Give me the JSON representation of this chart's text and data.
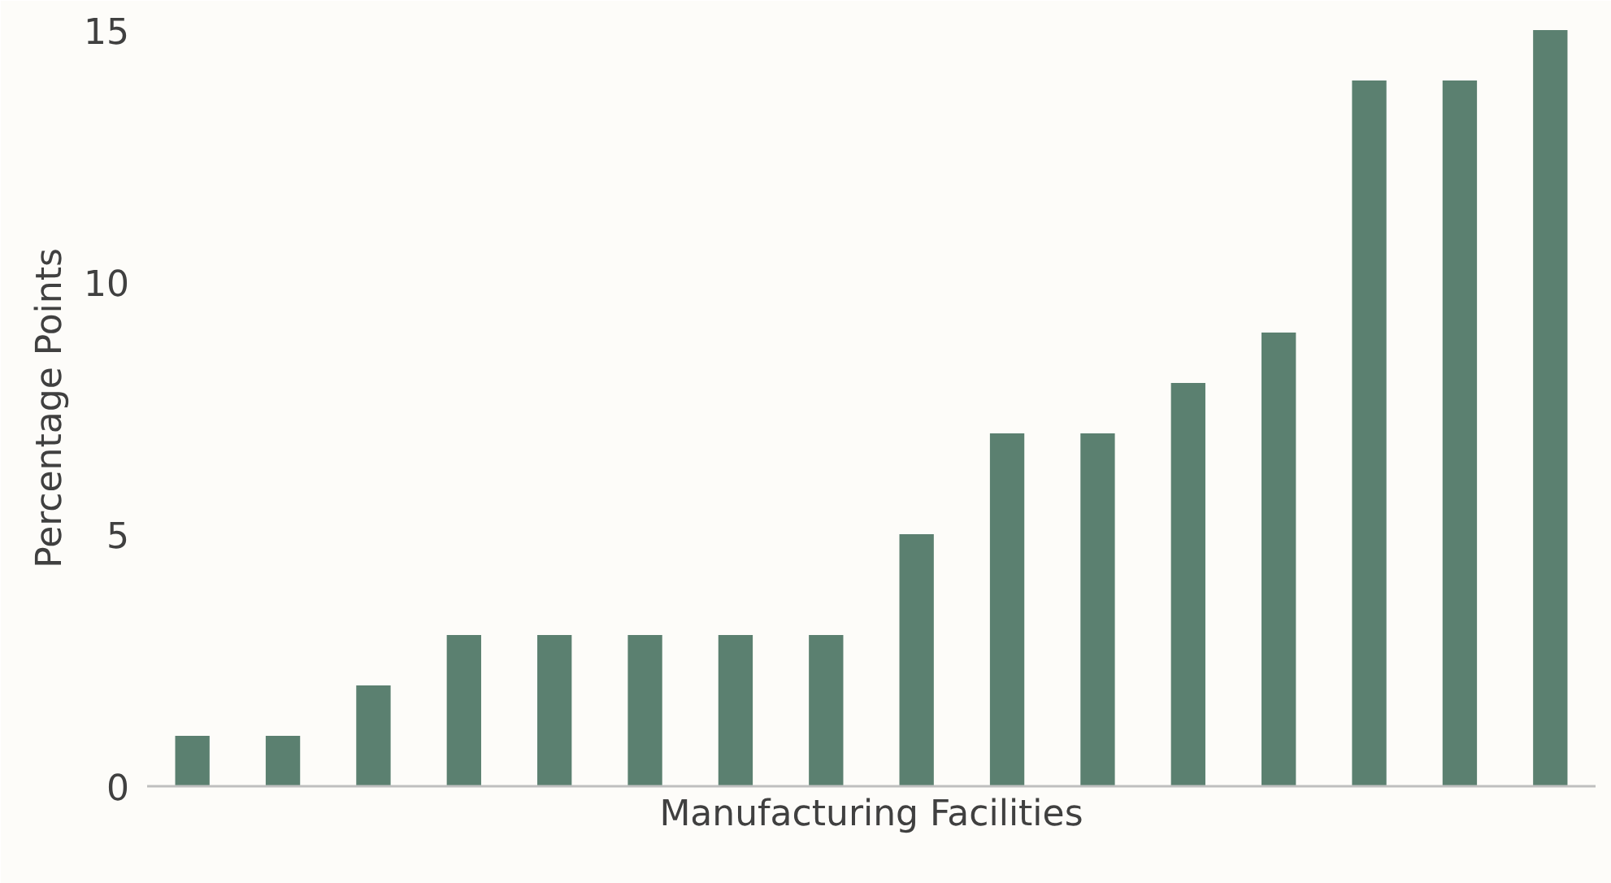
{
  "chart_data": {
    "type": "bar",
    "xlabel": "Manufacturing Facilities",
    "ylabel": "Percentage Points",
    "categories": [
      null,
      null,
      null,
      null,
      null,
      null,
      null,
      null,
      null,
      null,
      null,
      null,
      null,
      null,
      null,
      null
    ],
    "values": [
      1,
      1,
      2,
      3,
      3,
      3,
      3,
      3,
      5,
      7,
      7,
      8,
      9,
      14,
      14,
      15
    ],
    "color": "#5b8070",
    "ylim": [
      0,
      15
    ],
    "yticks": [
      0,
      5,
      10,
      15
    ],
    "grid": false,
    "tick_labels": "y"
  }
}
